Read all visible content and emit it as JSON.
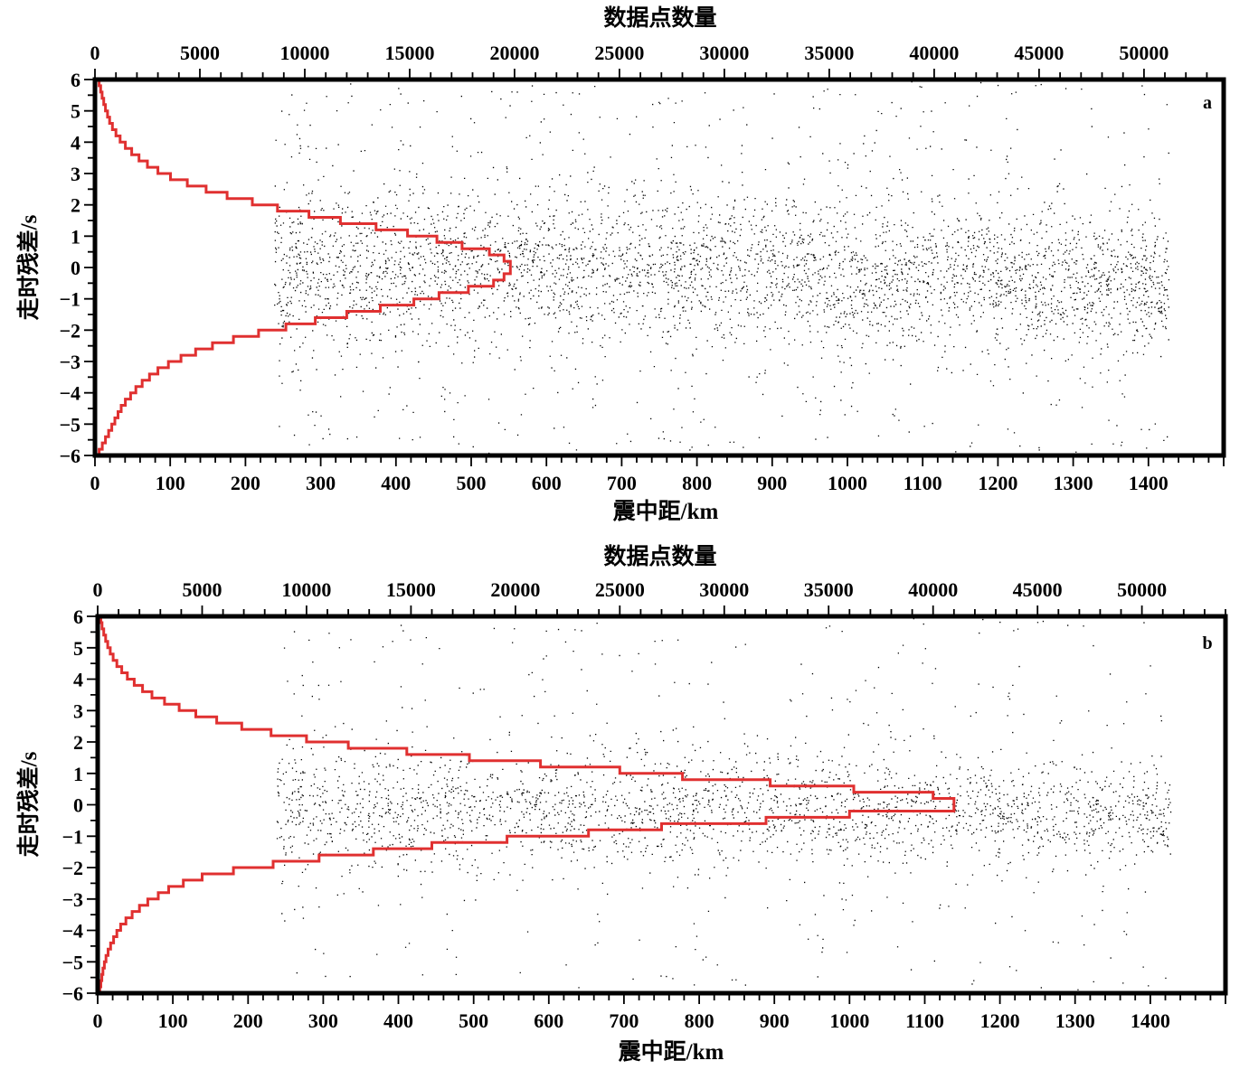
{
  "chart_data": [
    {
      "type": "scatter",
      "panel_label": "a",
      "xlabel": "震中距/km",
      "ylabel": "走时残差/s",
      "x2label": "数据点数量",
      "xlim": [
        0,
        1500
      ],
      "ylim": [
        -6,
        6
      ],
      "x2lim": [
        0,
        53800
      ],
      "xticks": [
        "0",
        "100",
        "200",
        "300",
        "400",
        "500",
        "600",
        "700",
        "800",
        "900",
        "1000",
        "1100",
        "1200",
        "1300",
        "1400"
      ],
      "x2ticks": [
        "0",
        "5000",
        "10000",
        "15000",
        "20000",
        "25000",
        "30000",
        "35000",
        "40000",
        "45000",
        "50000"
      ],
      "yticks": [
        "−6",
        "−5",
        "−4",
        "−3",
        "−2",
        "−1",
        "0",
        "1",
        "2",
        "3",
        "4",
        "5",
        "6"
      ],
      "grid": false,
      "series": [
        {
          "kind": "scatter",
          "color": "#000000",
          "x_range": [
            238,
            1427
          ],
          "y_range": [
            -6,
            6
          ],
          "center_profile": [
            [
              238,
              0.0
            ],
            [
              600,
              0.1
            ],
            [
              1000,
              -0.2
            ],
            [
              1427,
              -0.5
            ]
          ],
          "spread_profile": [
            [
              238,
              1.3
            ],
            [
              700,
              1.2
            ],
            [
              1100,
              1.1
            ],
            [
              1427,
              1.0
            ]
          ]
        },
        {
          "kind": "histogram",
          "axis": "x2",
          "color": "#e03030",
          "bin_edges": [
            -6.0,
            -5.8,
            -5.6,
            -5.4,
            -5.2,
            -5.0,
            -4.8,
            -4.6,
            -4.4,
            -4.2,
            -4.0,
            -3.8,
            -3.6,
            -3.4,
            -3.2,
            -3.0,
            -2.8,
            -2.6,
            -2.4,
            -2.2,
            -2.0,
            -1.8,
            -1.6,
            -1.4,
            -1.2,
            -1.0,
            -0.8,
            -0.6,
            -0.4,
            -0.2,
            0.0,
            0.2,
            0.4,
            0.6,
            0.8,
            1.0,
            1.2,
            1.4,
            1.6,
            1.8,
            2.0,
            2.2,
            2.4,
            2.6,
            2.8,
            3.0,
            3.2,
            3.4,
            3.6,
            3.8,
            4.0,
            4.2,
            4.4,
            4.6,
            4.8,
            5.0,
            5.2,
            5.4,
            5.6,
            5.8,
            6.0
          ],
          "counts": [
            200,
            350,
            500,
            650,
            800,
            950,
            1100,
            1250,
            1450,
            1700,
            1950,
            2250,
            2600,
            3000,
            3500,
            4100,
            4800,
            5600,
            6600,
            7800,
            9100,
            10500,
            12000,
            13600,
            15200,
            16400,
            17800,
            19000,
            19500,
            19800,
            19800,
            19500,
            18800,
            17500,
            16300,
            14900,
            13400,
            11700,
            10200,
            8700,
            7500,
            6300,
            5300,
            4400,
            3600,
            3000,
            2500,
            2100,
            1750,
            1450,
            1200,
            1000,
            830,
            700,
            600,
            500,
            420,
            340,
            270,
            200
          ]
        }
      ]
    },
    {
      "type": "scatter",
      "panel_label": "b",
      "xlabel": "震中距/km",
      "ylabel": "走时残差/s",
      "x2label": "数据点数量",
      "xlim": [
        0,
        1500
      ],
      "ylim": [
        -6,
        6
      ],
      "x2lim": [
        0,
        54000
      ],
      "xticks": [
        "0",
        "100",
        "200",
        "300",
        "400",
        "500",
        "600",
        "700",
        "800",
        "900",
        "1000",
        "1100",
        "1200",
        "1300",
        "1400"
      ],
      "x2ticks": [
        "0",
        "5000",
        "10000",
        "15000",
        "20000",
        "25000",
        "30000",
        "35000",
        "40000",
        "45000",
        "50000"
      ],
      "yticks": [
        "−6",
        "−5",
        "−4",
        "−3",
        "−2",
        "−1",
        "0",
        "1",
        "2",
        "3",
        "4",
        "5",
        "6"
      ],
      "grid": false,
      "series": [
        {
          "kind": "scatter",
          "color": "#000000",
          "x_range": [
            238,
            1427
          ],
          "y_range": [
            -6,
            6
          ],
          "center_profile": [
            [
              238,
              -0.1
            ],
            [
              800,
              -0.1
            ],
            [
              1427,
              -0.3
            ]
          ],
          "spread_profile": [
            [
              238,
              1.05
            ],
            [
              800,
              0.9
            ],
            [
              1427,
              0.7
            ]
          ]
        },
        {
          "kind": "histogram",
          "axis": "x2",
          "color": "#e03030",
          "bin_edges": [
            -6.0,
            -5.8,
            -5.6,
            -5.4,
            -5.2,
            -5.0,
            -4.8,
            -4.6,
            -4.4,
            -4.2,
            -4.0,
            -3.8,
            -3.6,
            -3.4,
            -3.2,
            -3.0,
            -2.8,
            -2.6,
            -2.4,
            -2.2,
            -2.0,
            -1.8,
            -1.6,
            -1.4,
            -1.2,
            -1.0,
            -0.8,
            -0.6,
            -0.4,
            -0.2,
            0.0,
            0.2,
            0.4,
            0.6,
            0.8,
            1.0,
            1.2,
            1.4,
            1.6,
            1.8,
            2.0,
            2.2,
            2.4,
            2.6,
            2.8,
            3.0,
            3.2,
            3.4,
            3.6,
            3.8,
            4.0,
            4.2,
            4.4,
            4.6,
            4.8,
            5.0,
            5.2,
            5.4,
            5.6,
            5.8,
            6.0
          ],
          "counts": [
            100,
            150,
            200,
            250,
            320,
            400,
            500,
            620,
            760,
            920,
            1100,
            1350,
            1650,
            2000,
            2400,
            2900,
            3400,
            4100,
            5000,
            6500,
            8400,
            10600,
            13200,
            16000,
            19600,
            23500,
            27000,
            32000,
            36000,
            41000,
            41000,
            40000,
            36200,
            32200,
            28000,
            25000,
            21200,
            17800,
            14800,
            12000,
            10000,
            8300,
            6900,
            5700,
            4700,
            3900,
            3200,
            2600,
            2150,
            1750,
            1420,
            1150,
            920,
            740,
            600,
            480,
            380,
            290,
            210,
            150
          ]
        }
      ]
    }
  ]
}
